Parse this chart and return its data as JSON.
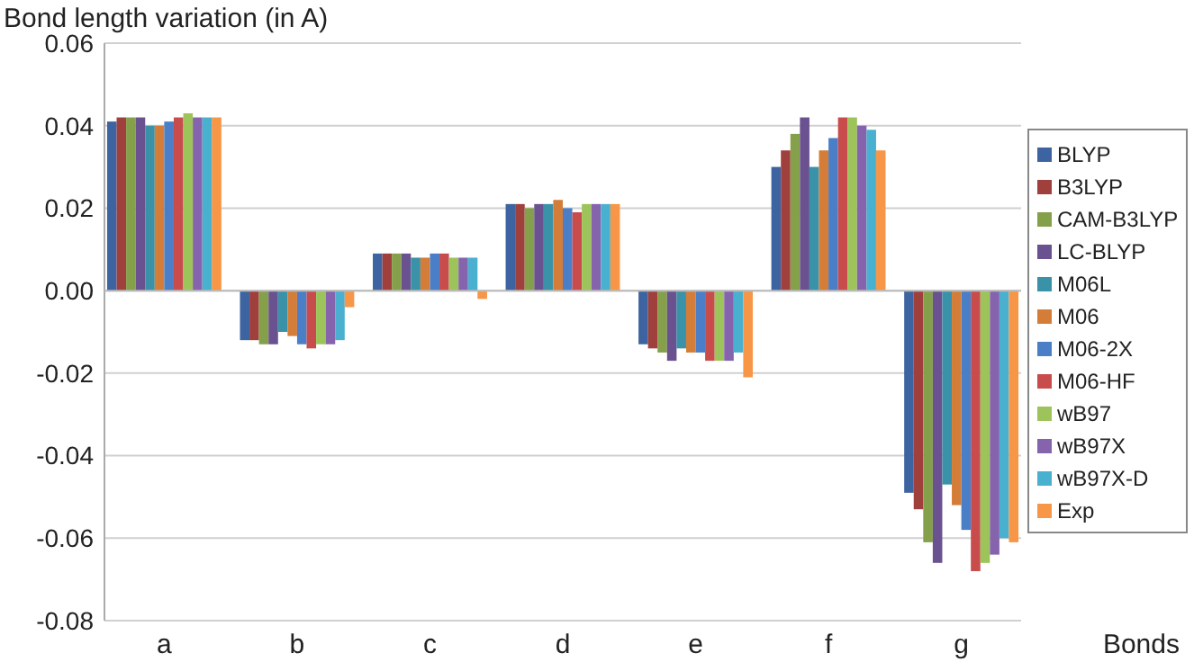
{
  "chart_data": {
    "type": "bar",
    "title": "Bond length variation (in A)",
    "xlabel": "Bonds",
    "categories": [
      "a",
      "b",
      "c",
      "d",
      "e",
      "f",
      "g"
    ],
    "ylim": [
      -0.08,
      0.06
    ],
    "yticks": [
      {
        "value": -0.08,
        "label": "-0.08"
      },
      {
        "value": -0.06,
        "label": "-0.06"
      },
      {
        "value": -0.04,
        "label": "-0.04"
      },
      {
        "value": -0.02,
        "label": "-0.02"
      },
      {
        "value": 0,
        "label": "0.00"
      },
      {
        "value": 0.02,
        "label": "0.02"
      },
      {
        "value": 0.04,
        "label": "0.04"
      },
      {
        "value": 0.06,
        "label": "0.06"
      }
    ],
    "grid": "y",
    "legend": "right",
    "series": [
      {
        "name": "BLYP",
        "color": "#3d64a0",
        "values": [
          0.041,
          -0.012,
          0.009,
          0.021,
          -0.013,
          0.03,
          -0.049
        ]
      },
      {
        "name": "B3LYP",
        "color": "#a0403d",
        "values": [
          0.042,
          -0.012,
          0.009,
          0.021,
          -0.014,
          0.034,
          -0.053
        ]
      },
      {
        "name": "CAM-B3LYP",
        "color": "#85a04a",
        "values": [
          0.042,
          -0.013,
          0.009,
          0.02,
          -0.015,
          0.038,
          -0.061
        ]
      },
      {
        "name": "LC-BLYP",
        "color": "#6a5290",
        "values": [
          0.042,
          -0.013,
          0.009,
          0.021,
          -0.017,
          0.042,
          -0.066
        ]
      },
      {
        "name": "M06L",
        "color": "#3a92a8",
        "values": [
          0.04,
          -0.01,
          0.008,
          0.021,
          -0.014,
          0.03,
          -0.047
        ]
      },
      {
        "name": "M06",
        "color": "#d47d38",
        "values": [
          0.04,
          -0.011,
          0.008,
          0.022,
          -0.015,
          0.034,
          -0.052
        ]
      },
      {
        "name": "M06-2X",
        "color": "#4a7fc8",
        "values": [
          0.041,
          -0.013,
          0.009,
          0.02,
          -0.015,
          0.037,
          -0.058
        ]
      },
      {
        "name": "M06-HF",
        "color": "#c84c4c",
        "values": [
          0.042,
          -0.014,
          0.009,
          0.019,
          -0.017,
          0.042,
          -0.068
        ]
      },
      {
        "name": "wB97",
        "color": "#9cc45a",
        "values": [
          0.043,
          -0.013,
          0.008,
          0.021,
          -0.017,
          0.042,
          -0.066
        ]
      },
      {
        "name": "wB97X",
        "color": "#8664ad",
        "values": [
          0.042,
          -0.013,
          0.008,
          0.021,
          -0.017,
          0.04,
          -0.064
        ]
      },
      {
        "name": "wB97X-D",
        "color": "#4ab0d0",
        "values": [
          0.042,
          -0.012,
          0.008,
          0.021,
          -0.015,
          0.039,
          -0.06
        ]
      },
      {
        "name": "Exp",
        "color": "#f79646",
        "values": [
          0.042,
          -0.004,
          -0.002,
          0.021,
          -0.021,
          0.034,
          -0.061
        ]
      }
    ]
  }
}
